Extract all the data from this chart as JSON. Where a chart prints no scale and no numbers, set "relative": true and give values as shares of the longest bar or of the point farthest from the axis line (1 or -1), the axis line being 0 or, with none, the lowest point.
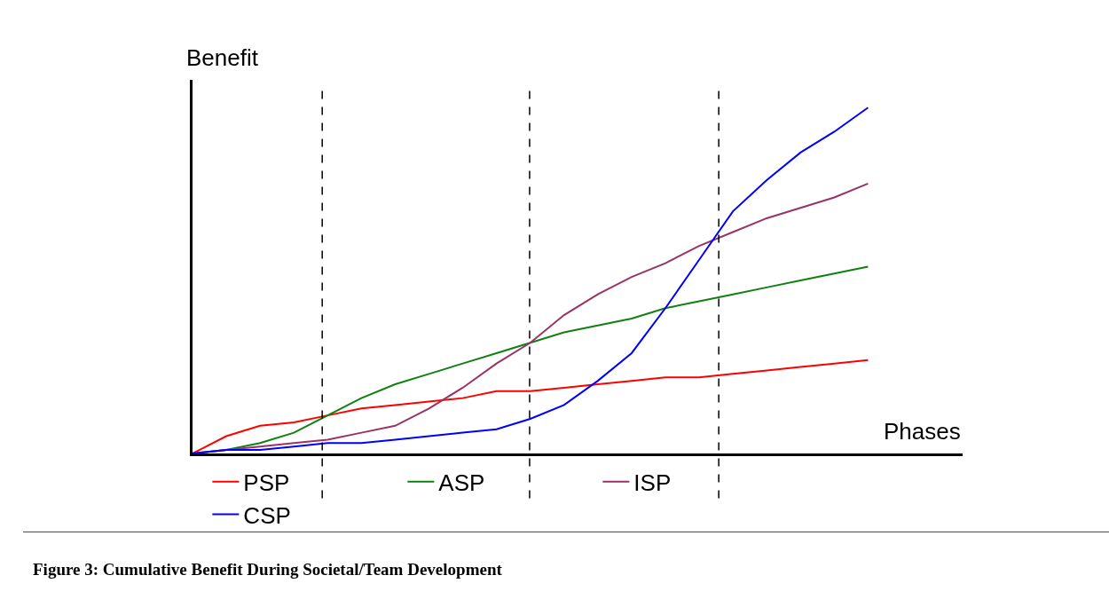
{
  "chart_data": {
    "type": "line",
    "relative": true,
    "xlabel": "Phases",
    "ylabel": "Benefit",
    "categories": [
      null,
      null,
      null,
      null,
      null,
      null,
      null,
      null,
      null,
      null,
      null,
      null,
      null,
      null,
      null,
      null,
      null,
      null,
      null,
      null,
      null
    ],
    "series": [
      {
        "name": "PSP",
        "color": "#ff0000",
        "values": [
          0,
          0.05,
          0.08,
          0.09,
          0.11,
          0.13,
          0.14,
          0.15,
          0.16,
          0.18,
          0.18,
          0.19,
          0.2,
          0.21,
          0.22,
          0.22,
          0.23,
          0.24,
          0.25,
          0.26,
          0.27
        ]
      },
      {
        "name": "ASP",
        "color": "#108010",
        "values": [
          0,
          0.01,
          0.03,
          0.06,
          0.11,
          0.16,
          0.2,
          0.23,
          0.26,
          0.29,
          0.32,
          0.35,
          0.37,
          0.39,
          0.42,
          0.44,
          0.46,
          0.48,
          0.5,
          0.52,
          0.54
        ]
      },
      {
        "name": "ISP",
        "color": "#993366",
        "values": [
          0,
          0.01,
          0.02,
          0.03,
          0.04,
          0.06,
          0.08,
          0.13,
          0.19,
          0.26,
          0.32,
          0.4,
          0.46,
          0.51,
          0.55,
          0.6,
          0.64,
          0.68,
          0.71,
          0.74,
          0.78
        ]
      },
      {
        "name": "CSP",
        "color": "#0000ff",
        "values": [
          0,
          0.01,
          0.01,
          0.02,
          0.03,
          0.03,
          0.04,
          0.05,
          0.06,
          0.07,
          0.1,
          0.14,
          0.21,
          0.29,
          0.42,
          0.56,
          0.7,
          0.79,
          0.87,
          0.93,
          1
        ]
      }
    ],
    "annotations": [
      "Figure 3: Cumulative Benefit During Societal/Team Development"
    ],
    "legend": "bottom",
    "grid": false,
    "marker": "none",
    "line_style": "solid"
  }
}
